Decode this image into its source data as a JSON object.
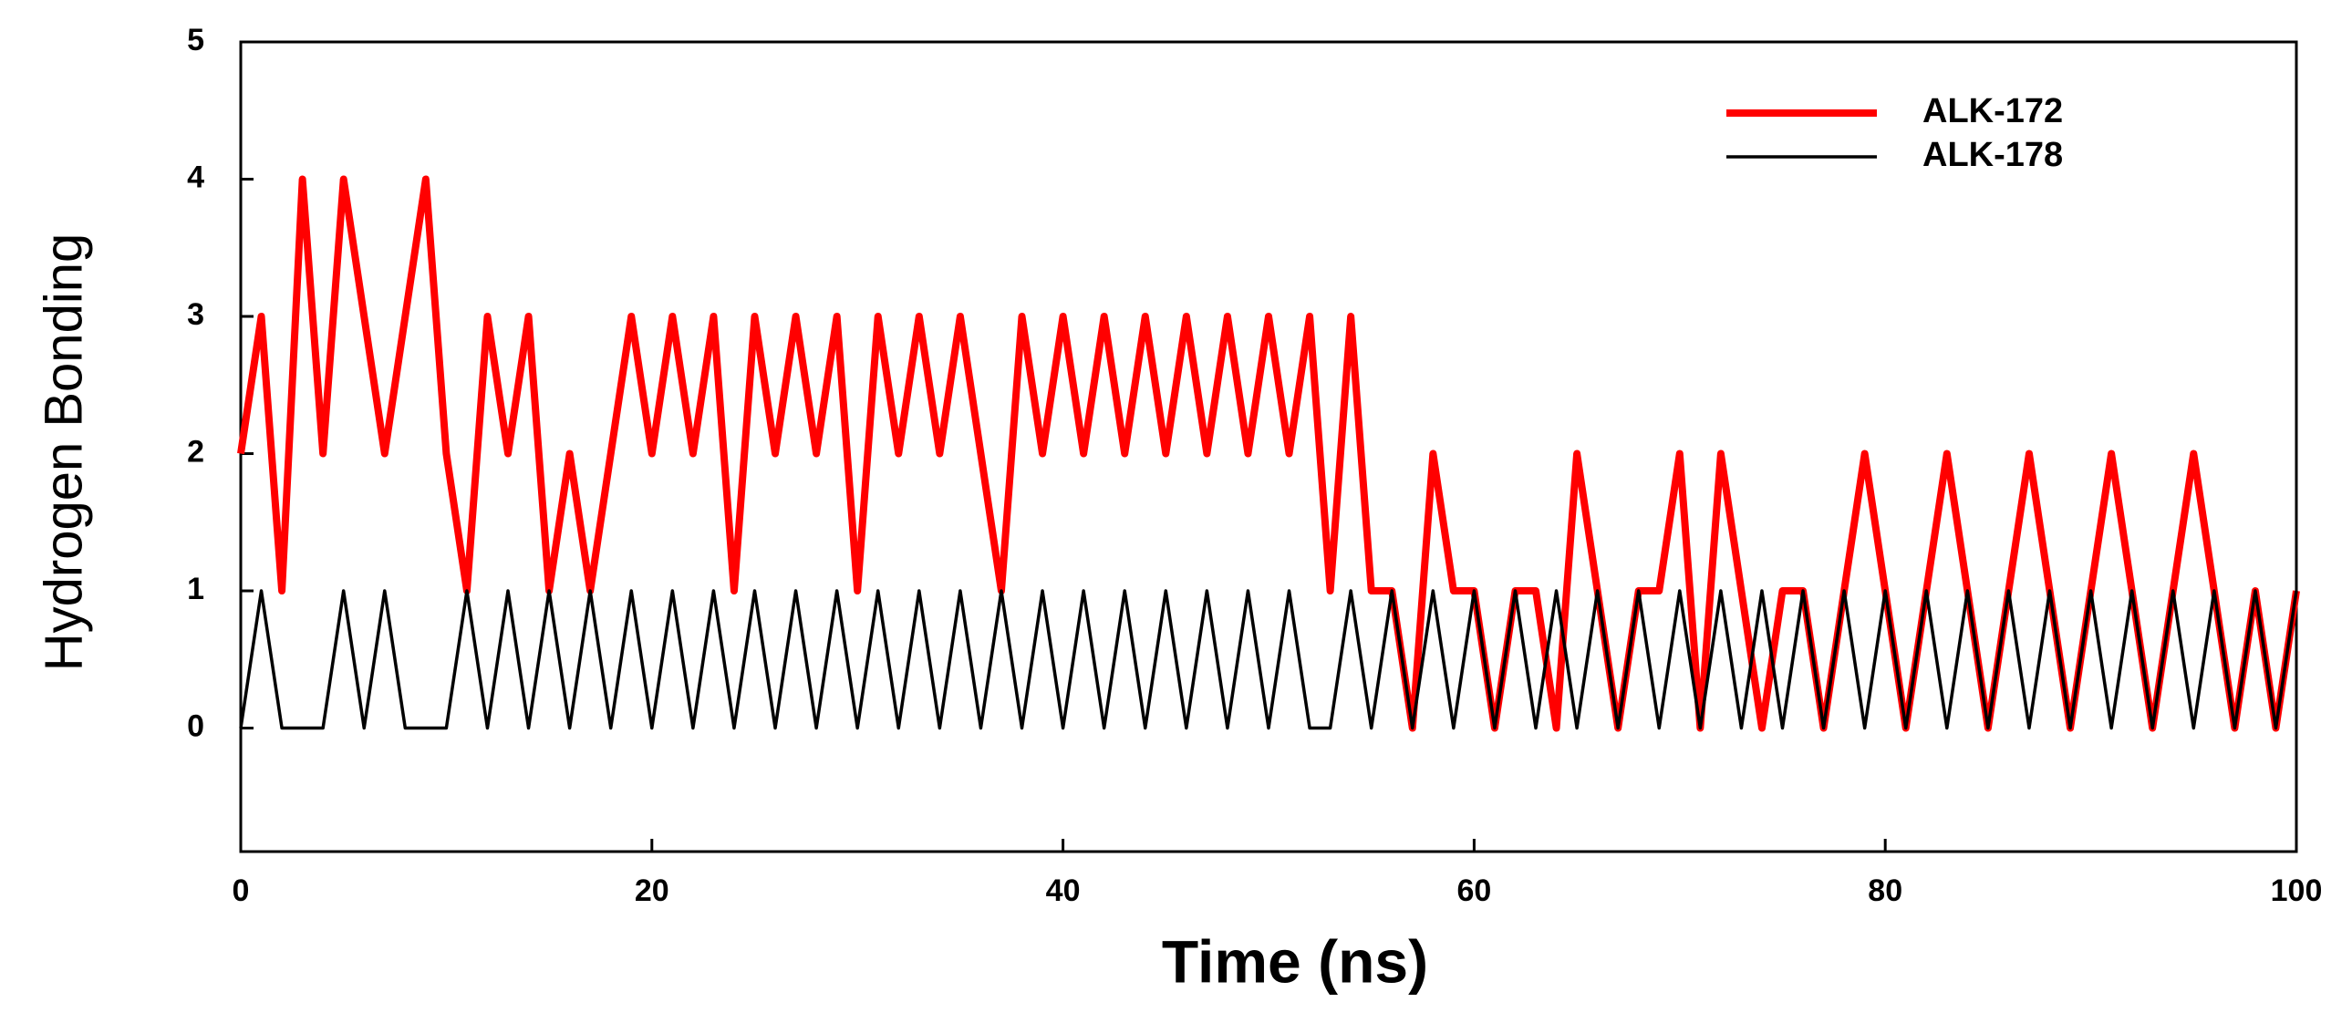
{
  "chart_data": {
    "type": "line",
    "x_label": "Time (ns)",
    "y_label": "Hydrogen Bonding",
    "xlim": [
      0,
      100
    ],
    "ylim": [
      -0.9,
      5
    ],
    "xticks": [
      0,
      20,
      40,
      60,
      80,
      100
    ],
    "yticks": [
      0,
      1,
      2,
      3,
      4,
      5
    ],
    "legend": "upper right",
    "x": [
      0,
      1,
      2,
      3,
      4,
      5,
      6,
      7,
      8,
      9,
      10,
      11,
      12,
      13,
      14,
      15,
      16,
      17,
      18,
      19,
      20,
      21,
      22,
      23,
      24,
      25,
      26,
      27,
      28,
      29,
      30,
      31,
      32,
      33,
      34,
      35,
      36,
      37,
      38,
      39,
      40,
      41,
      42,
      43,
      44,
      45,
      46,
      47,
      48,
      49,
      50,
      51,
      52,
      53,
      54,
      55,
      56,
      57,
      58,
      59,
      60,
      61,
      62,
      63,
      64,
      65,
      66,
      67,
      68,
      69,
      70,
      71,
      72,
      73,
      74,
      75,
      76,
      77,
      78,
      79,
      80,
      81,
      82,
      83,
      84,
      85,
      86,
      87,
      88,
      89,
      90,
      91,
      92,
      93,
      94,
      95,
      96,
      97,
      98,
      99,
      100
    ],
    "series": [
      {
        "name": "ALK-172",
        "color": "#ff0000",
        "values": [
          2,
          3,
          1,
          4,
          2,
          4,
          3,
          2,
          3,
          4,
          2,
          1,
          3,
          2,
          3,
          1,
          2,
          1,
          2,
          3,
          2,
          3,
          2,
          3,
          1,
          3,
          2,
          3,
          2,
          3,
          1,
          3,
          2,
          3,
          2,
          3,
          2,
          1,
          3,
          2,
          3,
          2,
          3,
          2,
          3,
          2,
          3,
          2,
          3,
          2,
          3,
          2,
          3,
          1,
          3,
          1,
          1,
          0,
          2,
          1,
          1,
          0,
          1,
          1,
          0,
          2,
          1,
          0,
          1,
          1,
          2,
          0,
          2,
          1,
          0,
          1,
          1,
          0,
          1,
          2,
          1,
          0,
          1,
          2,
          1,
          0,
          1,
          2,
          1,
          0,
          1,
          2,
          1,
          0,
          1,
          2,
          1,
          0,
          1,
          0,
          1
        ]
      },
      {
        "name": "ALK-178",
        "color": "#000000",
        "values": [
          0,
          1,
          0,
          0,
          0,
          1,
          0,
          1,
          0,
          0,
          0,
          1,
          0,
          1,
          0,
          1,
          0,
          1,
          0,
          1,
          0,
          1,
          0,
          1,
          0,
          1,
          0,
          1,
          0,
          1,
          0,
          1,
          0,
          1,
          0,
          1,
          0,
          1,
          0,
          1,
          0,
          1,
          0,
          1,
          0,
          1,
          0,
          1,
          0,
          1,
          0,
          1,
          0,
          0,
          1,
          0,
          1,
          0,
          1,
          0,
          1,
          0,
          1,
          0,
          1,
          0,
          1,
          0,
          1,
          0,
          1,
          0,
          1,
          0,
          1,
          0,
          1,
          0,
          1,
          0,
          1,
          0,
          1,
          0,
          1,
          0,
          1,
          0,
          1,
          0,
          1,
          0,
          1,
          0,
          1,
          0,
          1,
          0,
          1,
          0,
          1
        ]
      }
    ]
  }
}
